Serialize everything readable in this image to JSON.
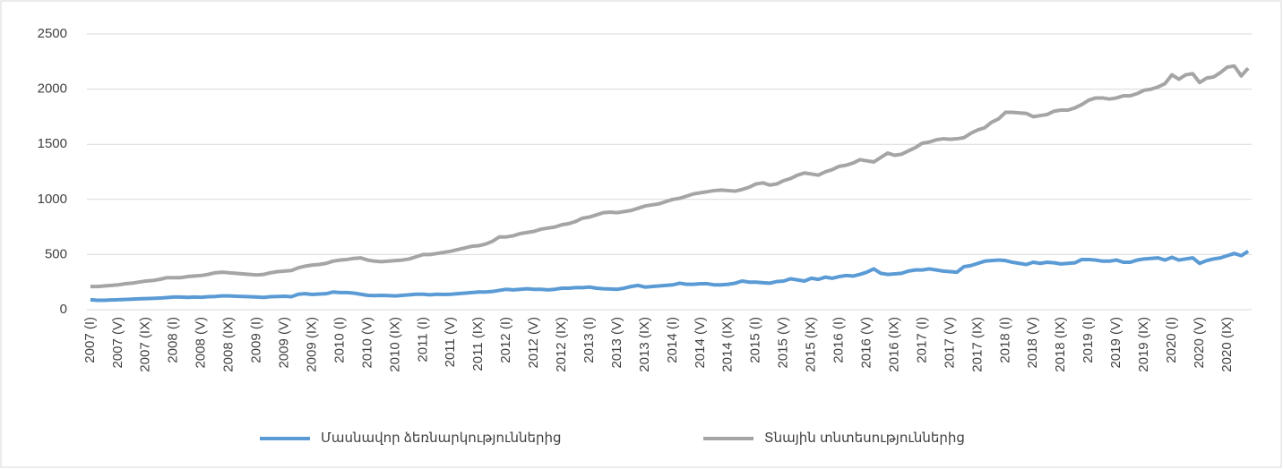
{
  "chart_data": {
    "type": "line",
    "categories": [
      "2007 (I)",
      null,
      null,
      null,
      "2007 (V)",
      null,
      null,
      null,
      "2007 (IX)",
      null,
      null,
      null,
      "2008 (I)",
      null,
      null,
      null,
      "2008 (V)",
      null,
      null,
      null,
      "2008 (IX)",
      null,
      null,
      null,
      "2009 (I)",
      null,
      null,
      null,
      "2009 (V)",
      null,
      null,
      null,
      "2009 (IX)",
      null,
      null,
      null,
      "2010 (I)",
      null,
      null,
      null,
      "2010 (V)",
      null,
      null,
      null,
      "2010 (IX)",
      null,
      null,
      null,
      "2011 (I)",
      null,
      null,
      null,
      "2011 (V)",
      null,
      null,
      null,
      "2011 (IX)",
      null,
      null,
      null,
      "2012 (I)",
      null,
      null,
      null,
      "2012 (V)",
      null,
      null,
      null,
      "2012 (IX)",
      null,
      null,
      null,
      "2013 (I)",
      null,
      null,
      null,
      "2013 (V)",
      null,
      null,
      null,
      "2013 (IX)",
      null,
      null,
      null,
      "2014 (I)",
      null,
      null,
      null,
      "2014 (V)",
      null,
      null,
      null,
      "2014 (IX)",
      null,
      null,
      null,
      "2015 (I)",
      null,
      null,
      null,
      "2015 (V)",
      null,
      null,
      null,
      "2015 (IX)",
      null,
      null,
      null,
      "2016 (I)",
      null,
      null,
      null,
      "2016 (V)",
      null,
      null,
      null,
      "2016 (IX)",
      null,
      null,
      null,
      "2017 (I)",
      null,
      null,
      null,
      "2017 (V)",
      null,
      null,
      null,
      "2017 (IX)",
      null,
      null,
      null,
      "2018 (I)",
      null,
      null,
      null,
      "2018 (V)",
      null,
      null,
      null,
      "2018 (IX)",
      null,
      null,
      null,
      "2019 (I)",
      null,
      null,
      null,
      "2019 (V)",
      null,
      null,
      null,
      "2019 (IX)",
      null,
      null,
      null,
      "2020 (I)",
      null,
      null,
      null,
      "2020 (V)",
      null,
      null,
      null,
      "2020 (IX)",
      null,
      null,
      null
    ],
    "series": [
      {
        "name": "Մասնավոր ձեռնարկություններից",
        "color": "#5b9bd5",
        "values": [
          90,
          85,
          85,
          88,
          90,
          92,
          95,
          98,
          100,
          102,
          105,
          110,
          115,
          115,
          112,
          115,
          113,
          118,
          120,
          125,
          125,
          122,
          120,
          118,
          115,
          112,
          118,
          120,
          122,
          118,
          140,
          145,
          138,
          142,
          145,
          160,
          155,
          155,
          150,
          140,
          130,
          128,
          130,
          128,
          125,
          130,
          135,
          140,
          140,
          135,
          140,
          138,
          140,
          145,
          150,
          155,
          160,
          160,
          165,
          175,
          185,
          180,
          185,
          190,
          185,
          185,
          180,
          185,
          195,
          195,
          200,
          200,
          205,
          195,
          190,
          188,
          185,
          195,
          210,
          220,
          205,
          210,
          215,
          220,
          225,
          240,
          230,
          230,
          235,
          235,
          225,
          225,
          230,
          240,
          260,
          250,
          250,
          245,
          240,
          255,
          260,
          280,
          270,
          260,
          285,
          275,
          295,
          285,
          300,
          310,
          305,
          320,
          340,
          370,
          330,
          320,
          325,
          330,
          350,
          360,
          360,
          370,
          360,
          350,
          345,
          340,
          390,
          400,
          420,
          440,
          445,
          450,
          445,
          430,
          420,
          410,
          430,
          420,
          430,
          425,
          415,
          420,
          425,
          455,
          455,
          450,
          440,
          440,
          450,
          430,
          430,
          450,
          460,
          465,
          470,
          450,
          475,
          450,
          460,
          470,
          420,
          445,
          460,
          470,
          490,
          510,
          490,
          530
        ]
      },
      {
        "name": "Տնային տնտեսություններից",
        "color": "#a5a5a5",
        "values": [
          210,
          210,
          215,
          220,
          225,
          235,
          240,
          250,
          260,
          265,
          275,
          290,
          290,
          290,
          300,
          305,
          310,
          320,
          335,
          340,
          335,
          330,
          325,
          320,
          315,
          320,
          335,
          345,
          350,
          355,
          380,
          395,
          405,
          410,
          420,
          440,
          450,
          455,
          465,
          470,
          450,
          440,
          435,
          440,
          445,
          450,
          460,
          480,
          500,
          500,
          510,
          520,
          530,
          545,
          560,
          575,
          580,
          595,
          620,
          660,
          660,
          670,
          690,
          700,
          710,
          730,
          740,
          750,
          770,
          780,
          800,
          830,
          840,
          860,
          880,
          885,
          880,
          890,
          900,
          920,
          940,
          950,
          960,
          980,
          1000,
          1010,
          1030,
          1050,
          1060,
          1070,
          1080,
          1085,
          1080,
          1075,
          1090,
          1110,
          1140,
          1150,
          1130,
          1140,
          1170,
          1190,
          1220,
          1240,
          1230,
          1220,
          1250,
          1270,
          1300,
          1310,
          1330,
          1360,
          1350,
          1340,
          1380,
          1420,
          1400,
          1410,
          1440,
          1470,
          1510,
          1520,
          1540,
          1550,
          1545,
          1550,
          1560,
          1600,
          1630,
          1650,
          1700,
          1730,
          1790,
          1790,
          1785,
          1780,
          1750,
          1760,
          1770,
          1800,
          1810,
          1810,
          1830,
          1860,
          1900,
          1920,
          1920,
          1910,
          1920,
          1940,
          1940,
          1960,
          1990,
          2000,
          2020,
          2050,
          2130,
          2090,
          2130,
          2140,
          2060,
          2100,
          2110,
          2150,
          2200,
          2210,
          2120,
          2190
        ]
      }
    ],
    "ylim": [
      0,
      2500
    ],
    "yticks": [
      0,
      500,
      1000,
      1500,
      2000,
      2500
    ],
    "grid": true,
    "legend": "bottom"
  }
}
